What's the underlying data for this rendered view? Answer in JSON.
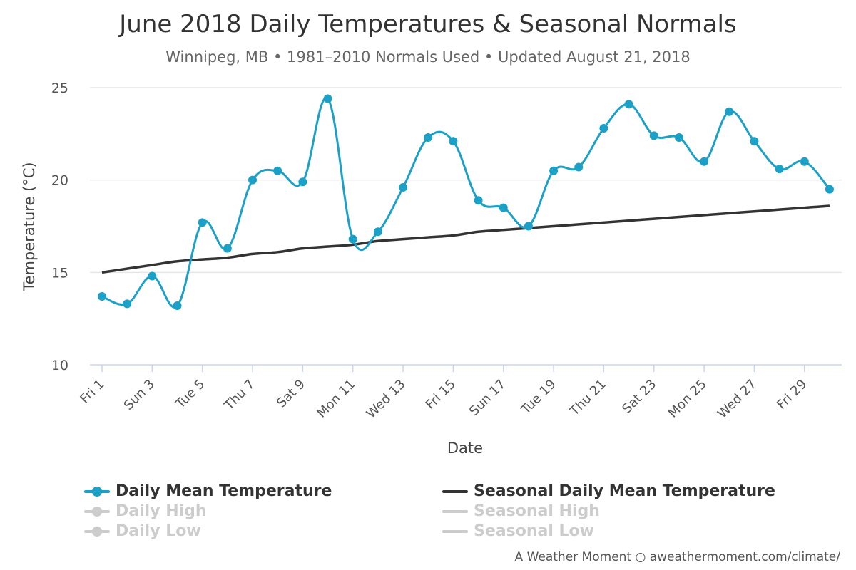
{
  "title": "June 2018 Daily Temperatures & Seasonal Normals",
  "subtitle": "Winnipeg, MB • 1981–2010 Normals Used • Updated August 21, 2018",
  "credit": "A Weather Moment ○ aweathermoment.com/climate/",
  "colors": {
    "mean": "#1ba1c7",
    "seasonal": "#333333",
    "hidden": "#cccccc",
    "grid": "#e6e6e6"
  },
  "legend": {
    "daily_mean": "Daily Mean Temperature",
    "seasonal_mean": "Seasonal Daily Mean Temperature",
    "daily_high": "Daily High",
    "seasonal_high": "Seasonal High",
    "daily_low": "Daily Low",
    "seasonal_low": "Seasonal Low"
  },
  "chart_data": {
    "type": "line",
    "xlabel": "Date",
    "ylabel": "Temperature (°C)",
    "ylim": [
      10,
      25
    ],
    "yticks": [
      10,
      15,
      20,
      25
    ],
    "x": [
      1,
      2,
      3,
      4,
      5,
      6,
      7,
      8,
      9,
      10,
      11,
      12,
      13,
      14,
      15,
      16,
      17,
      18,
      19,
      20,
      21,
      22,
      23,
      24,
      25,
      26,
      27,
      28,
      29,
      30
    ],
    "xtick_labels": [
      {
        "day": 1,
        "label": "Fri 1"
      },
      {
        "day": 3,
        "label": "Sun 3"
      },
      {
        "day": 5,
        "label": "Tue 5"
      },
      {
        "day": 7,
        "label": "Thu 7"
      },
      {
        "day": 9,
        "label": "Sat 9"
      },
      {
        "day": 11,
        "label": "Mon 11"
      },
      {
        "day": 13,
        "label": "Wed 13"
      },
      {
        "day": 15,
        "label": "Fri 15"
      },
      {
        "day": 17,
        "label": "Sun 17"
      },
      {
        "day": 19,
        "label": "Tue 19"
      },
      {
        "day": 21,
        "label": "Thu 21"
      },
      {
        "day": 23,
        "label": "Sat 23"
      },
      {
        "day": 25,
        "label": "Mon 25"
      },
      {
        "day": 27,
        "label": "Wed 27"
      },
      {
        "day": 29,
        "label": "Fri 29"
      }
    ],
    "series": [
      {
        "name": "Daily Mean Temperature",
        "values": [
          13.7,
          13.3,
          14.8,
          13.2,
          17.7,
          16.3,
          20.0,
          20.5,
          19.9,
          24.4,
          16.8,
          17.2,
          19.6,
          22.3,
          22.1,
          18.9,
          18.5,
          17.5,
          20.5,
          20.7,
          22.8,
          24.1,
          22.4,
          22.3,
          21.0,
          23.7,
          22.1,
          20.6,
          21.0,
          19.5
        ]
      },
      {
        "name": "Seasonal Daily Mean Temperature",
        "values": [
          15.0,
          15.2,
          15.4,
          15.6,
          15.7,
          15.8,
          16.0,
          16.1,
          16.3,
          16.4,
          16.5,
          16.7,
          16.8,
          16.9,
          17.0,
          17.2,
          17.3,
          17.4,
          17.5,
          17.6,
          17.7,
          17.8,
          17.9,
          18.0,
          18.1,
          18.2,
          18.3,
          18.4,
          18.5,
          18.6
        ]
      }
    ],
    "grid": true,
    "legend_position": "bottom"
  }
}
